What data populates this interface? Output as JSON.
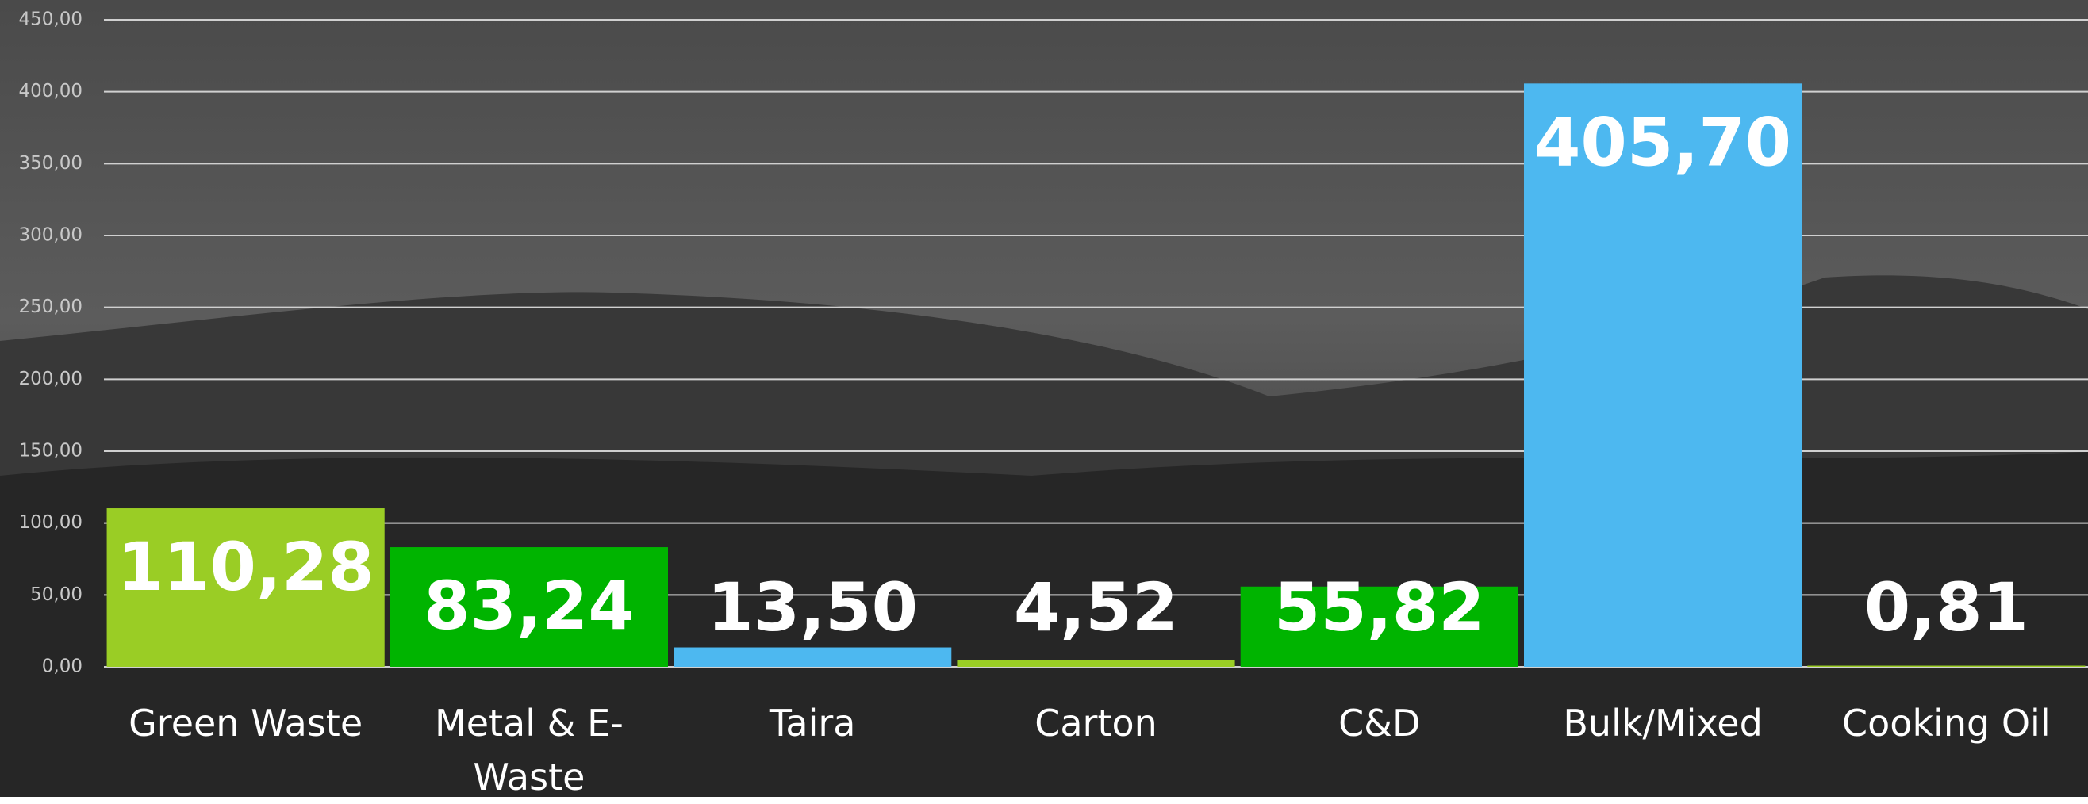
{
  "chart_data": {
    "type": "bar",
    "categories": [
      "Green Waste",
      "Metal & E-Waste",
      "Taira",
      "Carton",
      "C&D",
      "Bulk/Mixed",
      "Cooking Oil"
    ],
    "values": [
      110.28,
      83.24,
      13.5,
      4.52,
      55.82,
      405.7,
      0.81
    ],
    "value_labels": [
      "110,28",
      "83,24",
      "13,50",
      "4,52",
      "55,82",
      "405,70",
      "0,81"
    ],
    "colors": [
      "#9acd25",
      "#00b400",
      "#4db8f0",
      "#9acd25",
      "#00b400",
      "#4db8f0",
      "#9acd25"
    ],
    "ylim": [
      0,
      450
    ],
    "yticks": [
      {
        "value": 0,
        "label": "0,00"
      },
      {
        "value": 50,
        "label": "50,00"
      },
      {
        "value": 100,
        "label": "100,00"
      },
      {
        "value": 150,
        "label": "150,00"
      },
      {
        "value": 200,
        "label": "200,00"
      },
      {
        "value": 250,
        "label": "250,00"
      },
      {
        "value": 300,
        "label": "300,00"
      },
      {
        "value": 350,
        "label": "350,00"
      },
      {
        "value": 400,
        "label": "400,00"
      },
      {
        "value": 450,
        "label": "450,00"
      }
    ],
    "grid": true
  }
}
